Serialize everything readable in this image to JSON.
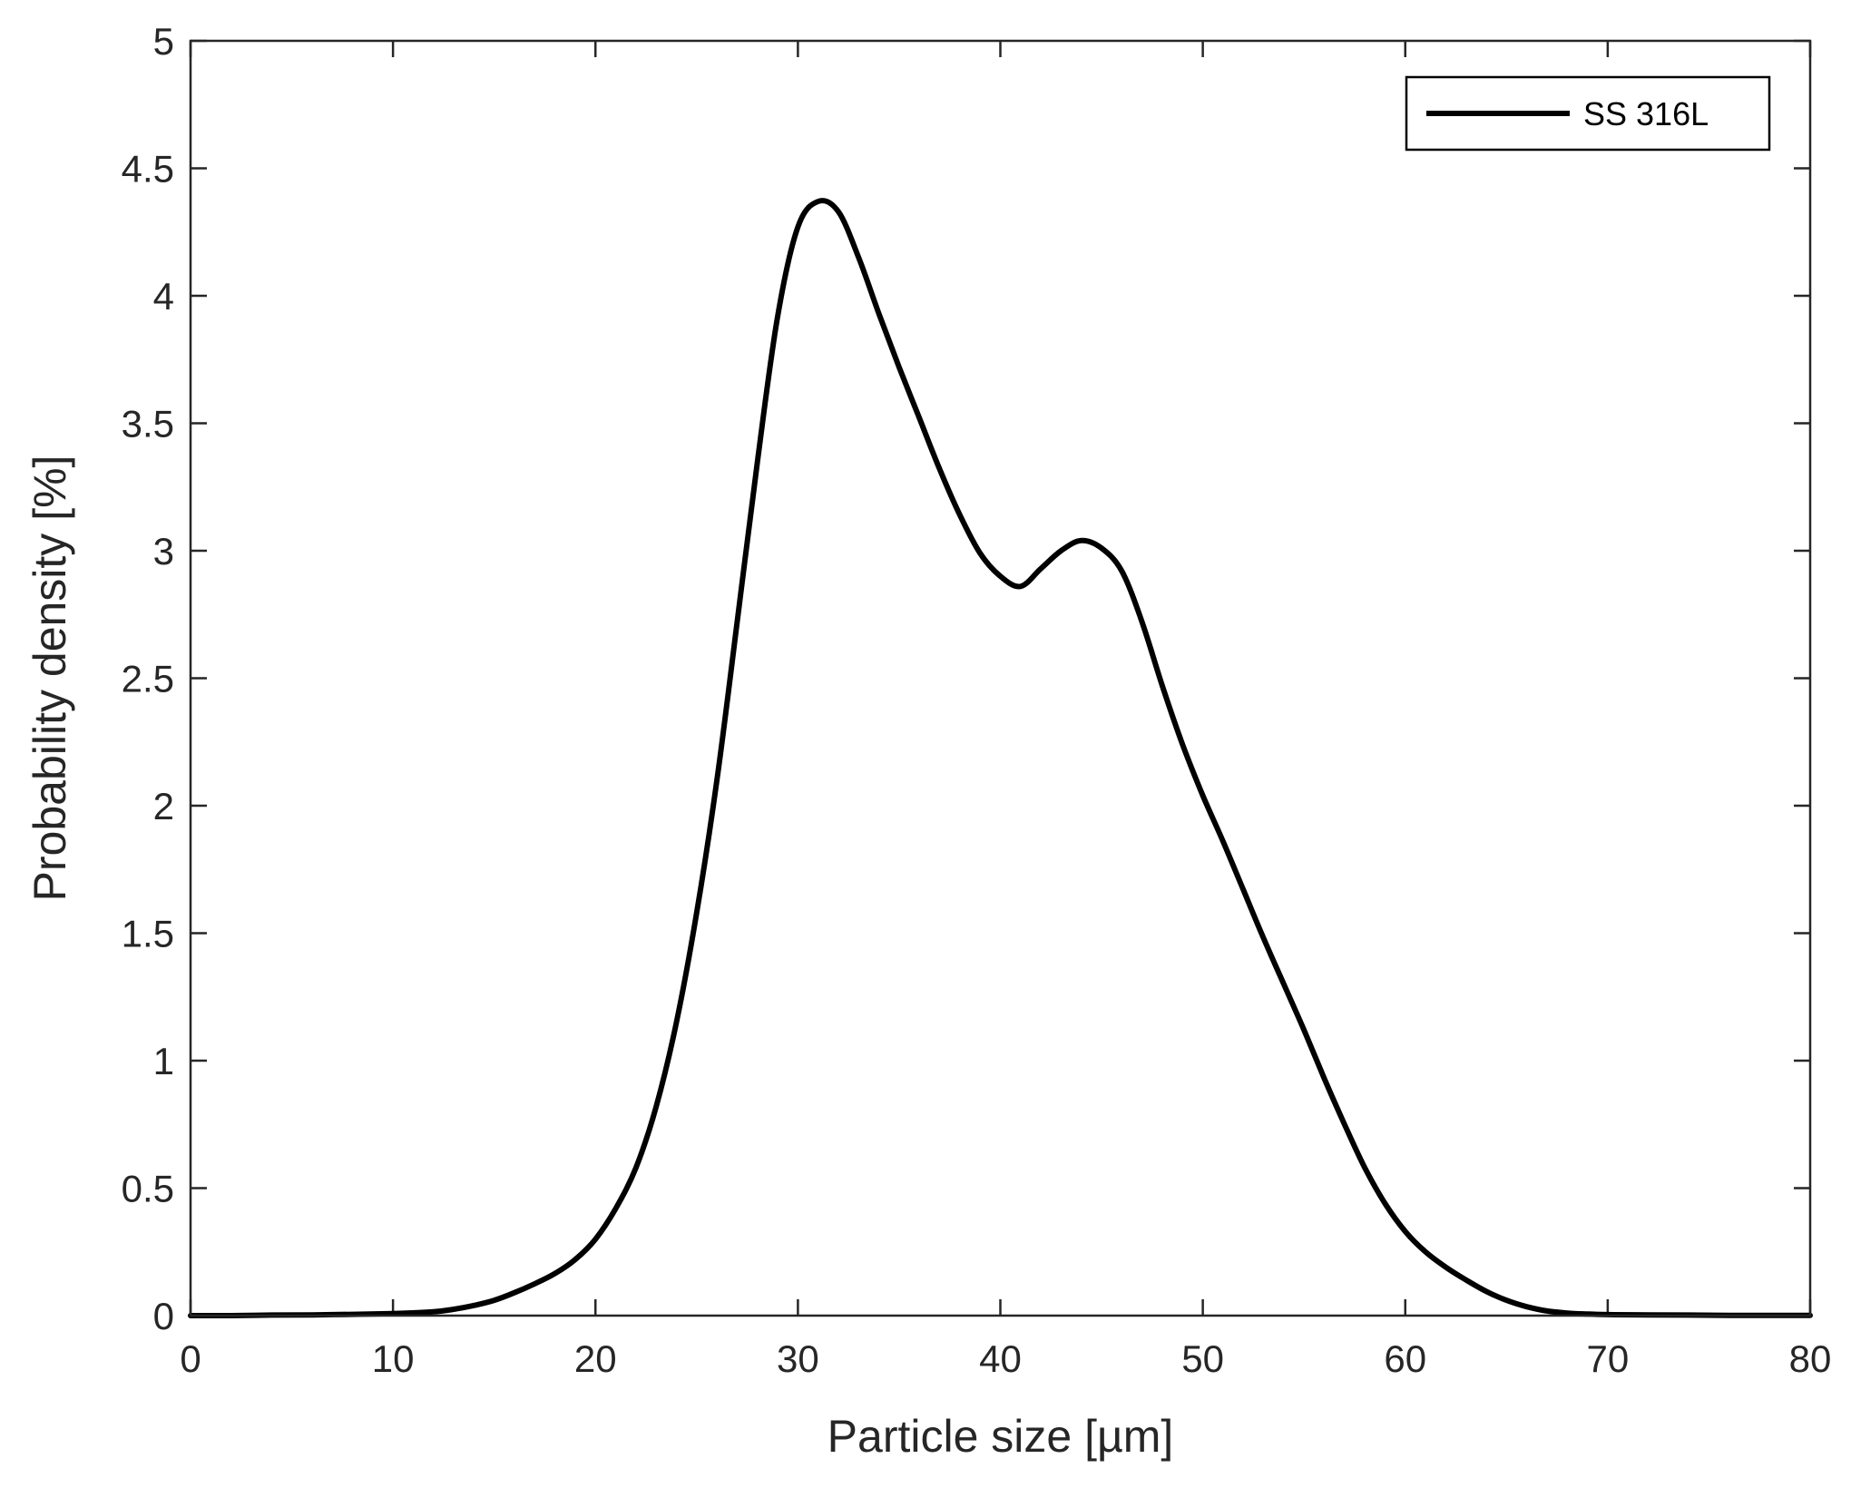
{
  "chart_data": {
    "type": "line",
    "xlabel": "Particle size [µm]",
    "ylabel": "Probability density [%]",
    "xlim": [
      0,
      80
    ],
    "ylim": [
      0,
      5
    ],
    "xticks": [
      0,
      10,
      20,
      30,
      40,
      50,
      60,
      70,
      80
    ],
    "yticks": [
      0,
      0.5,
      1,
      1.5,
      2,
      2.5,
      3,
      3.5,
      4,
      4.5,
      5
    ],
    "grid": false,
    "legend": {
      "position": "top-right",
      "entries": [
        "SS 316L"
      ]
    },
    "series": [
      {
        "name": "SS 316L",
        "color": "#000000",
        "x": [
          0,
          2,
          4,
          6,
          8,
          10,
          12,
          13,
          14,
          15,
          16,
          17,
          18,
          19,
          20,
          21,
          22,
          23,
          24,
          25,
          26,
          27,
          28,
          29,
          30,
          31,
          32,
          33,
          34,
          35,
          36,
          37,
          38,
          39,
          40,
          41,
          42,
          43,
          44,
          45,
          46,
          47,
          48,
          49,
          50,
          51,
          52,
          53,
          54,
          55,
          56,
          57,
          58,
          59,
          60,
          61,
          62,
          63,
          64,
          65,
          66,
          67,
          68,
          69,
          70,
          72,
          74,
          76,
          78,
          80
        ],
        "y": [
          0,
          0,
          0.002,
          0.003,
          0.005,
          0.008,
          0.015,
          0.025,
          0.04,
          0.06,
          0.09,
          0.125,
          0.165,
          0.22,
          0.3,
          0.42,
          0.58,
          0.82,
          1.15,
          1.58,
          2.1,
          2.72,
          3.35,
          3.92,
          4.27,
          4.37,
          4.33,
          4.15,
          3.93,
          3.72,
          3.52,
          3.32,
          3.14,
          2.99,
          2.9,
          2.86,
          2.93,
          3.0,
          3.04,
          3.01,
          2.92,
          2.72,
          2.47,
          2.24,
          2.04,
          1.86,
          1.67,
          1.48,
          1.3,
          1.12,
          0.93,
          0.75,
          0.58,
          0.44,
          0.33,
          0.25,
          0.19,
          0.14,
          0.095,
          0.06,
          0.035,
          0.018,
          0.01,
          0.006,
          0.004,
          0.003,
          0.002,
          0.001,
          0.001,
          0.001
        ]
      }
    ]
  }
}
